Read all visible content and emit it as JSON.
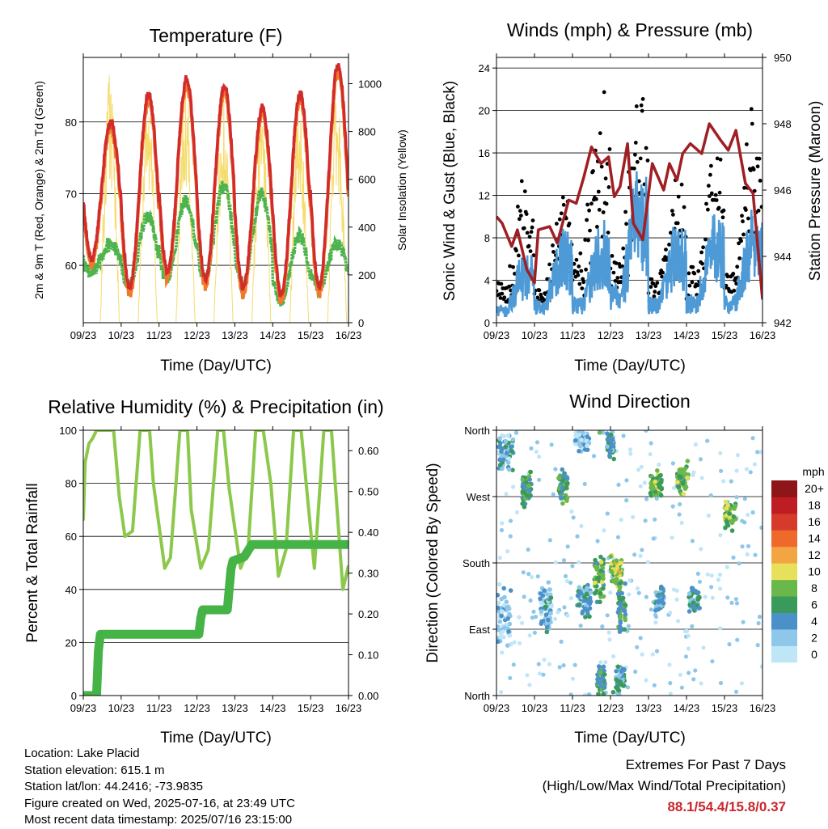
{
  "panels": {
    "temperature": {
      "title": "Temperature (F)",
      "xlabel": "Time (Day/UTC)",
      "ylabel_left": "2m & 9m T (Red, Orange) & 2m Td (Green)",
      "ylabel_right": "Solar Insolation (Yellow)"
    },
    "winds": {
      "title": "Winds (mph) & Pressure (mb)",
      "xlabel": "Time (Day/UTC)",
      "ylabel_left": "Sonic Wind & Gust (Blue, Black)",
      "ylabel_right": "Station Pressure (Maroon)"
    },
    "humidity": {
      "title": "Relative Humidity (%) & Precipitation (in)",
      "xlabel": "Time (Day/UTC)",
      "ylabel_left": "Percent & Total Rainfall"
    },
    "direction": {
      "title": "Wind Direction",
      "xlabel": "Time (Day/UTC)",
      "ylabel_left": "Direction (Colored By Speed)",
      "legend_title": "mph"
    }
  },
  "info": {
    "location": "Location: Lake Placid",
    "elevation": "Station elevation: 615.1 m",
    "latlon": "Station lat/lon: 44.2416; -73.9835",
    "created": "Figure created on Wed, 2025-07-16, at 23:49 UTC",
    "recent": "Most recent data timestamp: 2025/07/16 23:15:00"
  },
  "extremes": {
    "title": "Extremes For Past 7 Days",
    "subtitle": "(High/Low/Max Wind/Total Precipitation)",
    "values": "88.1/54.4/15.8/0.37"
  },
  "chart_data": [
    {
      "type": "line",
      "panel": "temperature",
      "x_ticks": [
        "09/23",
        "10/23",
        "11/23",
        "12/23",
        "13/23",
        "14/23",
        "15/23",
        "16/23"
      ],
      "xlim": [
        0,
        7
      ],
      "ylim": [
        52,
        89
      ],
      "y_ticks": [
        60,
        70,
        80
      ],
      "y2lim": [
        0,
        1110
      ],
      "y2_ticks": [
        0,
        200,
        400,
        600,
        800,
        1000
      ],
      "daily_max_T": [
        80,
        84,
        86,
        85,
        82,
        84,
        88
      ],
      "daily_min_T": [
        61,
        57,
        59,
        58,
        57,
        56,
        57
      ],
      "daily_max_Td": [
        63,
        67,
        69,
        71,
        70,
        64,
        63
      ],
      "daily_min_Td": [
        59,
        57,
        58,
        58,
        57,
        55,
        57
      ],
      "daily_max_solar": [
        1060,
        1030,
        1020,
        960,
        940,
        920,
        1010
      ],
      "series": [
        {
          "name": "2m T",
          "color": "#d22b2b"
        },
        {
          "name": "9m T",
          "color": "#f07a2a"
        },
        {
          "name": "2m Td",
          "color": "#4db34d"
        },
        {
          "name": "Solar Insolation",
          "color": "#f5dc6e"
        }
      ]
    },
    {
      "type": "line",
      "panel": "winds",
      "x_ticks": [
        "09/23",
        "10/23",
        "11/23",
        "12/23",
        "13/23",
        "14/23",
        "15/23",
        "16/23"
      ],
      "xlim": [
        0,
        7
      ],
      "ylim": [
        0,
        25
      ],
      "y_ticks": [
        0,
        4,
        8,
        12,
        16,
        20,
        24
      ],
      "y2lim": [
        942,
        950
      ],
      "y2_ticks": [
        942,
        944,
        946,
        948,
        950
      ],
      "daily_peak_gust": [
        14,
        11,
        23,
        23,
        15,
        19,
        20
      ],
      "daily_peak_wind": [
        7,
        9,
        10,
        15,
        10,
        11,
        11
      ],
      "pressure_x": [
        0,
        0.15,
        0.4,
        0.55,
        0.8,
        1.0,
        1.1,
        1.4,
        1.6,
        1.9,
        2.1,
        2.3,
        2.5,
        2.75,
        2.95,
        3.1,
        3.25,
        3.45,
        3.6,
        3.85,
        4.1,
        4.4,
        4.55,
        4.75,
        4.9,
        5.1,
        5.4,
        5.6,
        5.9,
        6.1,
        6.3,
        6.55,
        6.75,
        7.0
      ],
      "pressure_y": [
        945.2,
        945.0,
        944.3,
        944.8,
        943.6,
        943.2,
        944.8,
        944.9,
        944.4,
        945.7,
        945.6,
        946.4,
        947.3,
        946.8,
        947.0,
        945.8,
        946.1,
        947.4,
        945.0,
        944.5,
        946.8,
        946.0,
        946.8,
        946.3,
        947.1,
        947.4,
        947.1,
        948.0,
        947.5,
        947.2,
        947.8,
        946.2,
        945.9,
        942.7
      ],
      "series": [
        {
          "name": "Sonic Wind",
          "color": "#4d9ad6"
        },
        {
          "name": "Gust",
          "color": "#000000"
        },
        {
          "name": "Station Pressure",
          "color": "#a01f24"
        }
      ]
    },
    {
      "type": "line",
      "panel": "humidity",
      "x_ticks": [
        "09/23",
        "10/23",
        "11/23",
        "12/23",
        "13/23",
        "14/23",
        "15/23",
        "16/23"
      ],
      "xlim": [
        0,
        7
      ],
      "ylim": [
        0,
        100
      ],
      "y_ticks": [
        0,
        20,
        40,
        60,
        80,
        100
      ],
      "y2lim": [
        0,
        0.65
      ],
      "y2_ticks": [
        "0.00",
        "0.10",
        "0.20",
        "0.30",
        "0.40",
        "0.50",
        "0.60"
      ],
      "rh_x": [
        0,
        0.05,
        0.15,
        0.25,
        0.35,
        0.55,
        0.8,
        0.95,
        1.1,
        1.3,
        1.5,
        1.75,
        1.85,
        2.15,
        2.3,
        2.55,
        2.75,
        2.85,
        3.1,
        3.3,
        3.55,
        3.7,
        3.85,
        4.15,
        4.35,
        4.55,
        4.75,
        4.95,
        5.15,
        5.35,
        5.55,
        5.75,
        5.95,
        6.1,
        6.35,
        6.55,
        6.75,
        6.85,
        7.0
      ],
      "rh_y": [
        66,
        88,
        95,
        97,
        100,
        100,
        100,
        75,
        60,
        62,
        100,
        100,
        80,
        48,
        52,
        100,
        100,
        70,
        48,
        55,
        100,
        100,
        78,
        48,
        55,
        100,
        100,
        80,
        45,
        55,
        100,
        100,
        70,
        48,
        100,
        100,
        60,
        40,
        49
      ],
      "precip_x": [
        0,
        0.35,
        0.4,
        0.45,
        3.05,
        3.1,
        3.15,
        3.4,
        3.8,
        3.85,
        3.9,
        3.95,
        4.25,
        4.45,
        7.0
      ],
      "precip_y": [
        0.0,
        0.0,
        0.11,
        0.15,
        0.15,
        0.19,
        0.21,
        0.21,
        0.21,
        0.26,
        0.31,
        0.33,
        0.34,
        0.37,
        0.37
      ],
      "series": [
        {
          "name": "Relative Humidity",
          "color": "#8cc84b"
        },
        {
          "name": "Total Precipitation",
          "color": "#45b345"
        }
      ]
    },
    {
      "type": "scatter",
      "panel": "direction",
      "x_ticks": [
        "09/23",
        "10/23",
        "11/23",
        "12/23",
        "13/23",
        "14/23",
        "15/23",
        "16/23"
      ],
      "xlim": [
        0,
        7
      ],
      "y_ticks": [
        "North",
        "East",
        "South",
        "West",
        "North"
      ],
      "ylim": [
        0,
        360
      ],
      "clusters": [
        {
          "x": 0.2,
          "dir": 110,
          "spread_x": 0.18,
          "spread_d": 45,
          "speed": 2
        },
        {
          "x": 0.25,
          "dir": 330,
          "spread_x": 0.2,
          "spread_d": 30,
          "speed": 3
        },
        {
          "x": 0.8,
          "dir": 280,
          "spread_x": 0.12,
          "spread_d": 25,
          "speed": 6
        },
        {
          "x": 1.3,
          "dir": 120,
          "spread_x": 0.15,
          "spread_d": 40,
          "speed": 3
        },
        {
          "x": 1.75,
          "dir": 285,
          "spread_x": 0.12,
          "spread_d": 25,
          "speed": 6
        },
        {
          "x": 2.3,
          "dir": 130,
          "spread_x": 0.18,
          "spread_d": 25,
          "speed": 4
        },
        {
          "x": 2.7,
          "dir": 160,
          "spread_x": 0.12,
          "spread_d": 40,
          "speed": 7
        },
        {
          "x": 2.75,
          "dir": 20,
          "spread_x": 0.1,
          "spread_d": 25,
          "speed": 5
        },
        {
          "x": 3.15,
          "dir": 170,
          "spread_x": 0.15,
          "spread_d": 25,
          "speed": 9
        },
        {
          "x": 3.25,
          "dir": 20,
          "spread_x": 0.12,
          "spread_d": 20,
          "speed": 4
        },
        {
          "x": 3.3,
          "dir": 120,
          "spread_x": 0.1,
          "spread_d": 40,
          "speed": 6
        },
        {
          "x": 4.2,
          "dir": 285,
          "spread_x": 0.15,
          "spread_d": 25,
          "speed": 7
        },
        {
          "x": 4.3,
          "dir": 130,
          "spread_x": 0.12,
          "spread_d": 20,
          "speed": 4
        },
        {
          "x": 4.9,
          "dir": 295,
          "spread_x": 0.15,
          "spread_d": 25,
          "speed": 7
        },
        {
          "x": 5.2,
          "dir": 130,
          "spread_x": 0.15,
          "spread_d": 20,
          "speed": 4
        },
        {
          "x": 6.15,
          "dir": 245,
          "spread_x": 0.15,
          "spread_d": 22,
          "speed": 8
        },
        {
          "x": 3.0,
          "dir": 340,
          "spread_x": 0.1,
          "spread_d": 25,
          "speed": 4
        },
        {
          "x": 2.25,
          "dir": 345,
          "spread_x": 0.2,
          "spread_d": 20,
          "speed": 2
        }
      ],
      "legend": {
        "title": "mph",
        "labels": [
          "0",
          "2",
          "4",
          "6",
          "8",
          "10",
          "12",
          "14",
          "16",
          "18",
          "20+"
        ],
        "colors": [
          "#bfe6f7",
          "#8ec7ea",
          "#4b91c8",
          "#3a9a5c",
          "#6bb84a",
          "#e7e05a",
          "#f3a443",
          "#ee6a2c",
          "#d63a2a",
          "#be1d24",
          "#8e1619"
        ]
      }
    }
  ]
}
